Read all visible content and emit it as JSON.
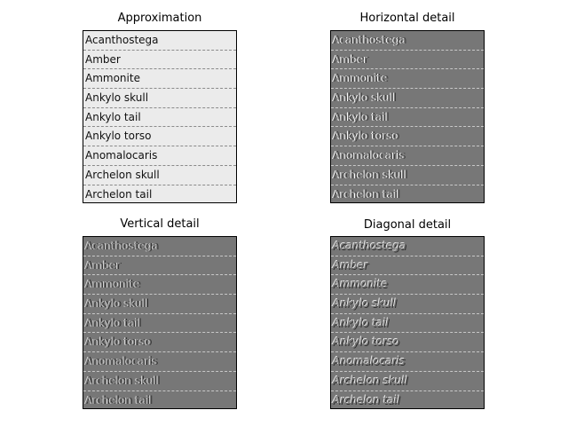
{
  "panels": [
    {
      "title": "Approximation"
    },
    {
      "title": "Horizontal detail"
    },
    {
      "title": "Vertical detail"
    },
    {
      "title": "Diagonal detail"
    }
  ],
  "items": [
    "Acanthostega",
    "Amber",
    "Ammonite",
    "Ankylo skull",
    "Ankylo tail",
    "Ankylo torso",
    "Anomalocaris",
    "Archelon skull",
    "Archelon tail"
  ],
  "colors": {
    "approx_bg": "#ebebeb",
    "detail_bg": "#777777"
  }
}
